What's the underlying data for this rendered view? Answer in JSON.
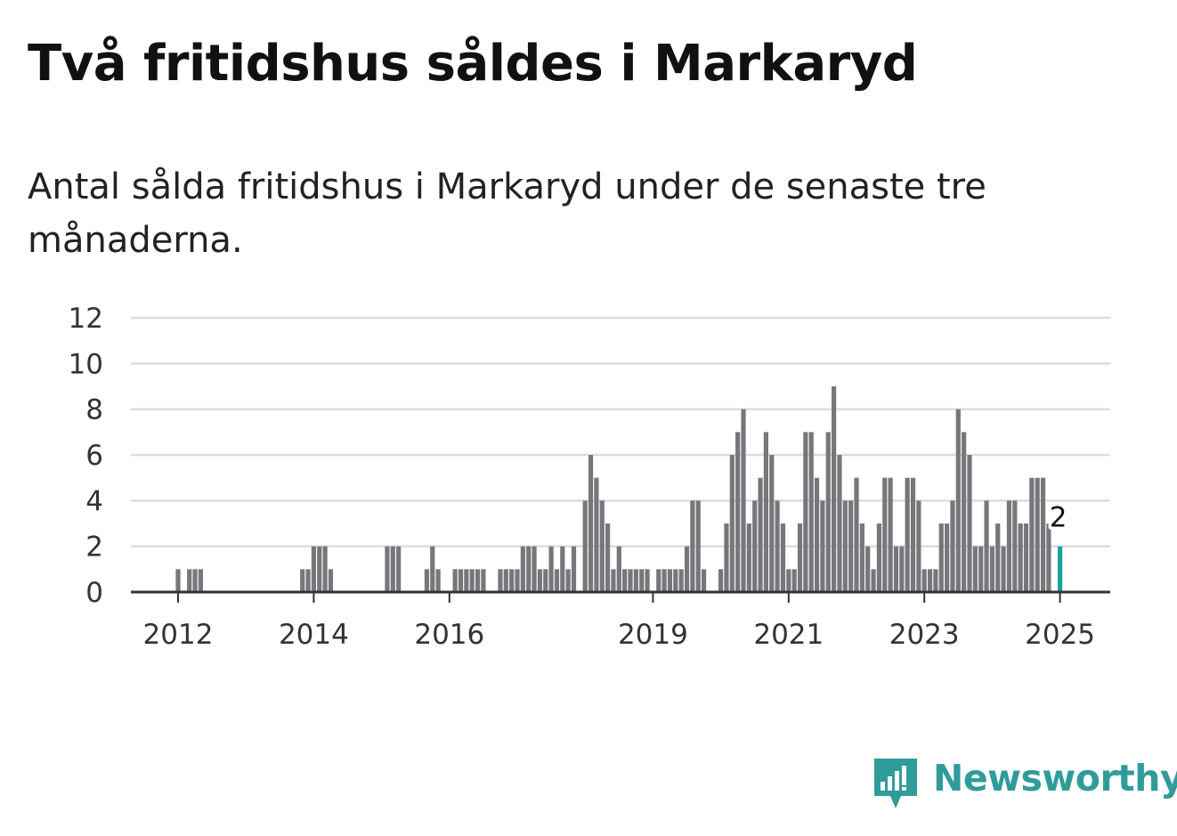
{
  "title": "Två fritidshus såldes i Markaryd",
  "subtitle": "Antal sålda fritidshus i Markaryd under de senaste tre månaderna.",
  "brand": {
    "name": "Newsworthy",
    "color": "#2f9c9a"
  },
  "colors": {
    "bar": "#77767b",
    "highlight": "#1aa39a",
    "grid": "#dddddd",
    "axis": "#333333"
  },
  "chart_data": {
    "type": "bar",
    "title": "",
    "xlabel": "",
    "ylabel": "",
    "ylim": [
      0,
      12
    ],
    "yticks": [
      0,
      2,
      4,
      6,
      8,
      10,
      12
    ],
    "grid": true,
    "xticks": [
      {
        "label": "2012",
        "date": "2012-01"
      },
      {
        "label": "2014",
        "date": "2014-01"
      },
      {
        "label": "2016",
        "date": "2016-01"
      },
      {
        "label": "2019",
        "date": "2019-01"
      },
      {
        "label": "2021",
        "date": "2021-01"
      },
      {
        "label": "2023",
        "date": "2023-01"
      },
      {
        "label": "2025",
        "date": "2025-01"
      }
    ],
    "annotation": {
      "date": "2025-01",
      "text": "2"
    },
    "series": [
      {
        "points": [
          [
            "2011-05",
            0
          ],
          [
            "2011-06",
            0
          ],
          [
            "2011-07",
            0
          ],
          [
            "2011-08",
            0
          ],
          [
            "2011-09",
            0
          ],
          [
            "2011-10",
            0
          ],
          [
            "2011-11",
            0
          ],
          [
            "2011-12",
            0
          ],
          [
            "2012-01",
            1
          ],
          [
            "2012-02",
            0
          ],
          [
            "2012-03",
            1
          ],
          [
            "2012-04",
            1
          ],
          [
            "2012-05",
            1
          ],
          [
            "2012-06",
            0
          ],
          [
            "2012-07",
            0
          ],
          [
            "2012-08",
            0
          ],
          [
            "2012-09",
            0
          ],
          [
            "2012-10",
            0
          ],
          [
            "2012-11",
            0
          ],
          [
            "2012-12",
            0
          ],
          [
            "2013-01",
            0
          ],
          [
            "2013-02",
            0
          ],
          [
            "2013-03",
            0
          ],
          [
            "2013-04",
            0
          ],
          [
            "2013-05",
            0
          ],
          [
            "2013-06",
            0
          ],
          [
            "2013-07",
            0
          ],
          [
            "2013-08",
            0
          ],
          [
            "2013-09",
            0
          ],
          [
            "2013-10",
            0
          ],
          [
            "2013-11",
            1
          ],
          [
            "2013-12",
            1
          ],
          [
            "2014-01",
            2
          ],
          [
            "2014-02",
            2
          ],
          [
            "2014-03",
            2
          ],
          [
            "2014-04",
            1
          ],
          [
            "2014-05",
            0
          ],
          [
            "2014-06",
            0
          ],
          [
            "2014-07",
            0
          ],
          [
            "2014-08",
            0
          ],
          [
            "2014-09",
            0
          ],
          [
            "2014-10",
            0
          ],
          [
            "2014-11",
            0
          ],
          [
            "2014-12",
            0
          ],
          [
            "2015-01",
            0
          ],
          [
            "2015-02",
            2
          ],
          [
            "2015-03",
            2
          ],
          [
            "2015-04",
            2
          ],
          [
            "2015-05",
            0
          ],
          [
            "2015-06",
            0
          ],
          [
            "2015-07",
            0
          ],
          [
            "2015-08",
            0
          ],
          [
            "2015-09",
            1
          ],
          [
            "2015-10",
            2
          ],
          [
            "2015-11",
            1
          ],
          [
            "2015-12",
            0
          ],
          [
            "2016-01",
            0
          ],
          [
            "2016-02",
            1
          ],
          [
            "2016-03",
            1
          ],
          [
            "2016-04",
            1
          ],
          [
            "2016-05",
            1
          ],
          [
            "2016-06",
            1
          ],
          [
            "2016-07",
            1
          ],
          [
            "2016-08",
            0
          ],
          [
            "2016-09",
            0
          ],
          [
            "2016-10",
            1
          ],
          [
            "2016-11",
            1
          ],
          [
            "2016-12",
            1
          ],
          [
            "2017-01",
            1
          ],
          [
            "2017-02",
            2
          ],
          [
            "2017-03",
            2
          ],
          [
            "2017-04",
            2
          ],
          [
            "2017-05",
            1
          ],
          [
            "2017-06",
            1
          ],
          [
            "2017-07",
            2
          ],
          [
            "2017-08",
            1
          ],
          [
            "2017-09",
            2
          ],
          [
            "2017-10",
            1
          ],
          [
            "2017-11",
            2
          ],
          [
            "2017-12",
            0
          ],
          [
            "2018-01",
            4
          ],
          [
            "2018-02",
            6
          ],
          [
            "2018-03",
            5
          ],
          [
            "2018-04",
            4
          ],
          [
            "2018-05",
            3
          ],
          [
            "2018-06",
            1
          ],
          [
            "2018-07",
            2
          ],
          [
            "2018-08",
            1
          ],
          [
            "2018-09",
            1
          ],
          [
            "2018-10",
            1
          ],
          [
            "2018-11",
            1
          ],
          [
            "2018-12",
            1
          ],
          [
            "2019-01",
            0
          ],
          [
            "2019-02",
            1
          ],
          [
            "2019-03",
            1
          ],
          [
            "2019-04",
            1
          ],
          [
            "2019-05",
            1
          ],
          [
            "2019-06",
            1
          ],
          [
            "2019-07",
            2
          ],
          [
            "2019-08",
            4
          ],
          [
            "2019-09",
            4
          ],
          [
            "2019-10",
            1
          ],
          [
            "2019-11",
            0
          ],
          [
            "2019-12",
            0
          ],
          [
            "2020-01",
            1
          ],
          [
            "2020-02",
            3
          ],
          [
            "2020-03",
            6
          ],
          [
            "2020-04",
            7
          ],
          [
            "2020-05",
            8
          ],
          [
            "2020-06",
            3
          ],
          [
            "2020-07",
            4
          ],
          [
            "2020-08",
            5
          ],
          [
            "2020-09",
            7
          ],
          [
            "2020-10",
            6
          ],
          [
            "2020-11",
            4
          ],
          [
            "2020-12",
            3
          ],
          [
            "2021-01",
            1
          ],
          [
            "2021-02",
            1
          ],
          [
            "2021-03",
            3
          ],
          [
            "2021-04",
            7
          ],
          [
            "2021-05",
            7
          ],
          [
            "2021-06",
            5
          ],
          [
            "2021-07",
            4
          ],
          [
            "2021-08",
            7
          ],
          [
            "2021-09",
            9
          ],
          [
            "2021-10",
            6
          ],
          [
            "2021-11",
            4
          ],
          [
            "2021-12",
            4
          ],
          [
            "2022-01",
            5
          ],
          [
            "2022-02",
            3
          ],
          [
            "2022-03",
            2
          ],
          [
            "2022-04",
            1
          ],
          [
            "2022-05",
            3
          ],
          [
            "2022-06",
            5
          ],
          [
            "2022-07",
            5
          ],
          [
            "2022-08",
            2
          ],
          [
            "2022-09",
            2
          ],
          [
            "2022-10",
            5
          ],
          [
            "2022-11",
            5
          ],
          [
            "2022-12",
            4
          ],
          [
            "2023-01",
            1
          ],
          [
            "2023-02",
            1
          ],
          [
            "2023-03",
            1
          ],
          [
            "2023-04",
            3
          ],
          [
            "2023-05",
            3
          ],
          [
            "2023-06",
            4
          ],
          [
            "2023-07",
            8
          ],
          [
            "2023-08",
            7
          ],
          [
            "2023-09",
            6
          ],
          [
            "2023-10",
            2
          ],
          [
            "2023-11",
            2
          ],
          [
            "2023-12",
            4
          ],
          [
            "2024-01",
            2
          ],
          [
            "2024-02",
            3
          ],
          [
            "2024-03",
            2
          ],
          [
            "2024-04",
            4
          ],
          [
            "2024-05",
            4
          ],
          [
            "2024-06",
            3
          ],
          [
            "2024-07",
            3
          ],
          [
            "2024-08",
            5
          ],
          [
            "2024-09",
            5
          ],
          [
            "2024-10",
            5
          ],
          [
            "2024-11",
            3
          ],
          [
            "2024-12",
            0
          ],
          [
            "2025-01",
            2
          ]
        ]
      }
    ]
  }
}
